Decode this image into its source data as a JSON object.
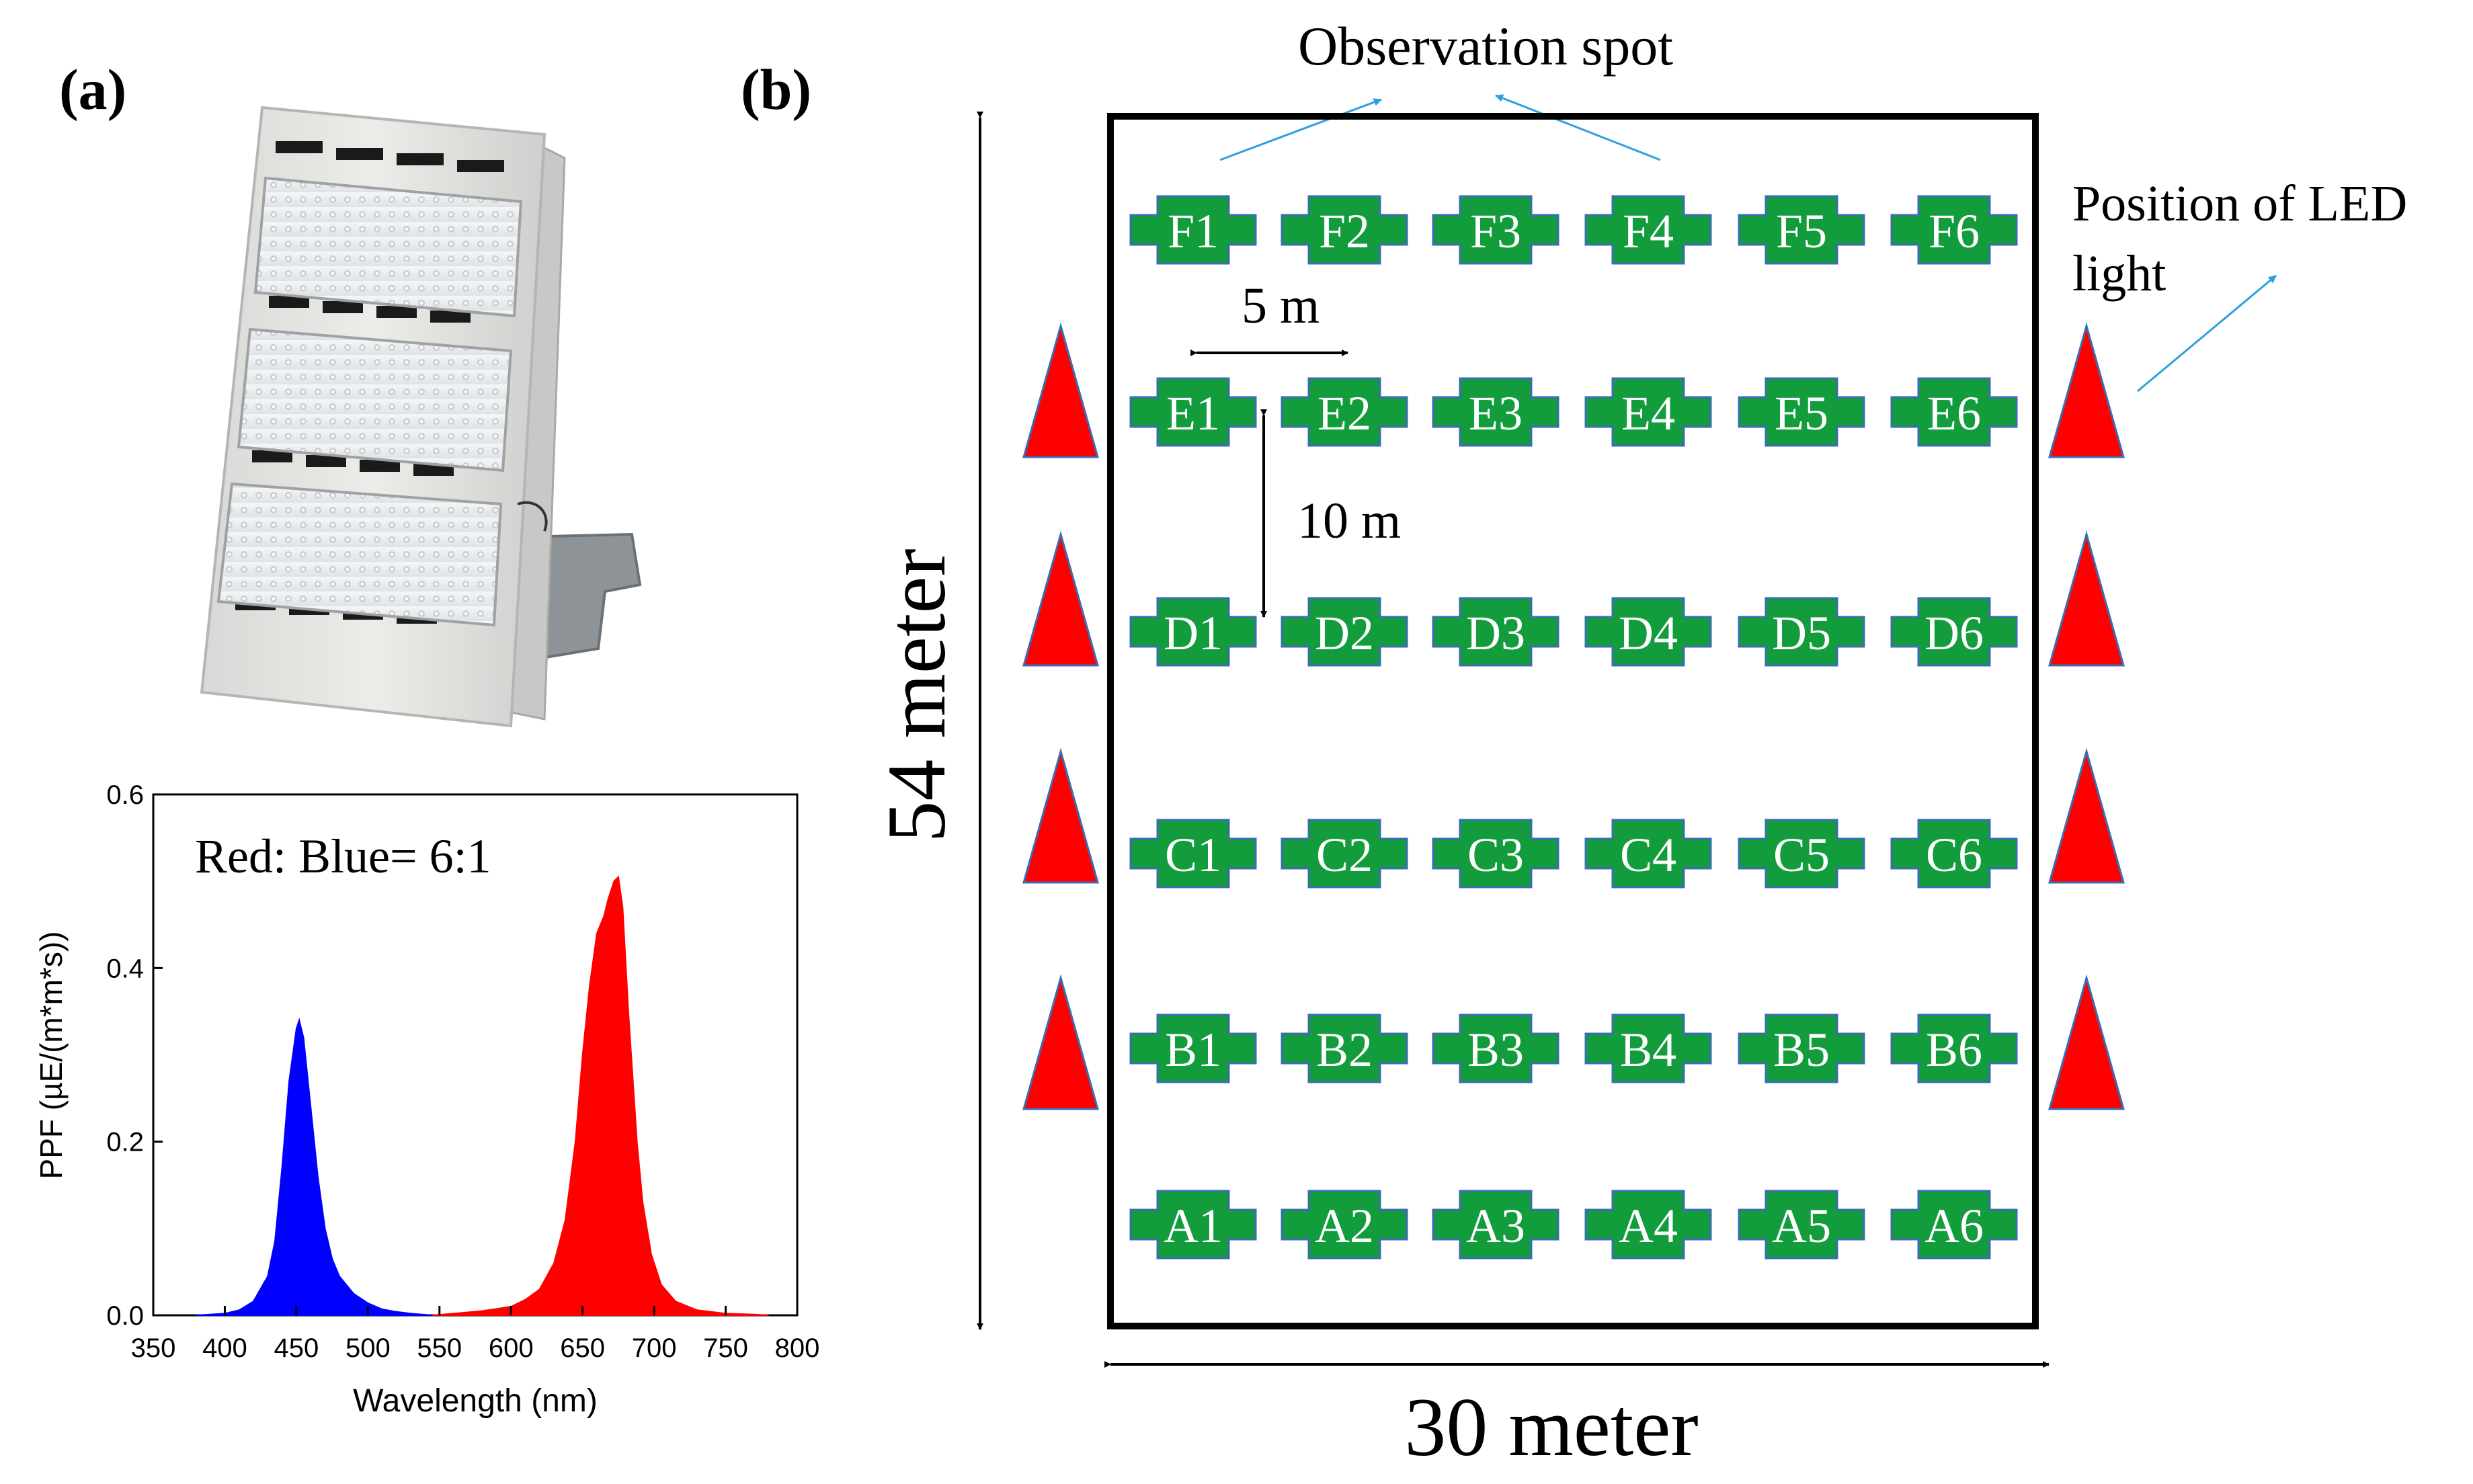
{
  "panel_a": {
    "label": "(a)",
    "lamp_image_name": "LED floodlight fixture photo",
    "chart_data": {
      "type": "area",
      "annotation": "Red: Blue= 6:1",
      "xlabel": "Wavelength (nm)",
      "ylabel": "PPF (µE/(m*m*s))",
      "xlim": [
        350,
        800
      ],
      "ylim": [
        0.0,
        0.6
      ],
      "x_ticks": [
        "350",
        "400",
        "450",
        "500",
        "550",
        "600",
        "650",
        "700",
        "750",
        "800"
      ],
      "y_ticks": [
        "0.0",
        "0.2",
        "0.4",
        "0.6"
      ],
      "series": [
        {
          "name": "Blue",
          "color": "#0000ff",
          "x": [
            380,
            400,
            410,
            420,
            430,
            435,
            440,
            445,
            450,
            452,
            455,
            460,
            465,
            470,
            475,
            480,
            490,
            500,
            510,
            520,
            530,
            545
          ],
          "y": [
            0.0,
            0.002,
            0.006,
            0.016,
            0.045,
            0.085,
            0.17,
            0.27,
            0.33,
            0.34,
            0.32,
            0.24,
            0.16,
            0.1,
            0.065,
            0.045,
            0.025,
            0.014,
            0.007,
            0.004,
            0.002,
            0.0
          ]
        },
        {
          "name": "Red",
          "color": "#ff0000",
          "x": [
            545,
            560,
            580,
            600,
            610,
            620,
            630,
            638,
            645,
            650,
            655,
            660,
            665,
            668,
            672,
            675,
            678,
            682,
            688,
            692,
            698,
            705,
            715,
            730,
            750,
            770,
            780
          ],
          "y": [
            0.0,
            0.002,
            0.005,
            0.01,
            0.018,
            0.03,
            0.06,
            0.11,
            0.2,
            0.3,
            0.38,
            0.44,
            0.46,
            0.48,
            0.5,
            0.505,
            0.47,
            0.35,
            0.2,
            0.13,
            0.07,
            0.035,
            0.016,
            0.006,
            0.002,
            0.001,
            0.0
          ]
        }
      ]
    }
  },
  "panel_b": {
    "label": "(b)",
    "observation_label": "Observation spot",
    "led_label_line1": "Position of LED",
    "led_label_line2": "light",
    "spacing_h_label": "5 m",
    "spacing_v_label": "10 m",
    "height_label": "54 meter",
    "width_label": "30 meter",
    "plot_color": "#129c3c",
    "led_color": "#ff0000",
    "rows": [
      [
        "F1",
        "F2",
        "F3",
        "F4",
        "F5",
        "F6"
      ],
      [
        "E1",
        "E2",
        "E3",
        "E4",
        "E5",
        "E6"
      ],
      [
        "D1",
        "D2",
        "D3",
        "D4",
        "D5",
        "D6"
      ],
      [
        "C1",
        "C2",
        "C3",
        "C4",
        "C5",
        "C6"
      ],
      [
        "B1",
        "B2",
        "B3",
        "B4",
        "B5",
        "B6"
      ],
      [
        "A1",
        "A2",
        "A3",
        "A4",
        "A5",
        "A6"
      ]
    ]
  }
}
